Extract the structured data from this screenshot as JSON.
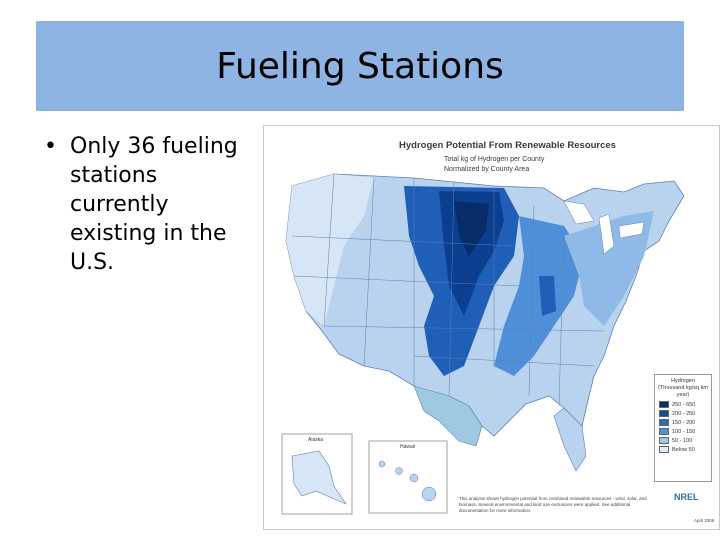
{
  "slide": {
    "title": "Fueling Stations",
    "bullets": [
      "Only 36 fueling stations currently existing in the U.S."
    ]
  },
  "map": {
    "title": "Hydrogen Potential From Renewable Resources",
    "subtitle_1": "Total kg of Hydrogen per County",
    "subtitle_2": "Normalized by County Area",
    "inset_alaska": "Alaska",
    "inset_hawaii": "Hawaii",
    "legend": {
      "title_1": "Hydrogen",
      "title_2": "(Thousand kg/sq km",
      "title_3": "year)",
      "items": [
        {
          "label": "250 - 650",
          "color": "#08306b"
        },
        {
          "label": "200 - 250",
          "color": "#08519c"
        },
        {
          "label": "150 - 200",
          "color": "#2171b5"
        },
        {
          "label": "100 - 150",
          "color": "#4f8fd8"
        },
        {
          "label": "50 - 100",
          "color": "#9ecae1"
        },
        {
          "label": "Below 50",
          "color": "#dbe9f6"
        }
      ]
    },
    "note": "This analysis shows hydrogen potential from combined renewable resources - wind, solar, and biomass. Several environmental and land use exclusions were applied. See additional documentation for more information.",
    "logo": "NREL",
    "date": "April 2006"
  }
}
